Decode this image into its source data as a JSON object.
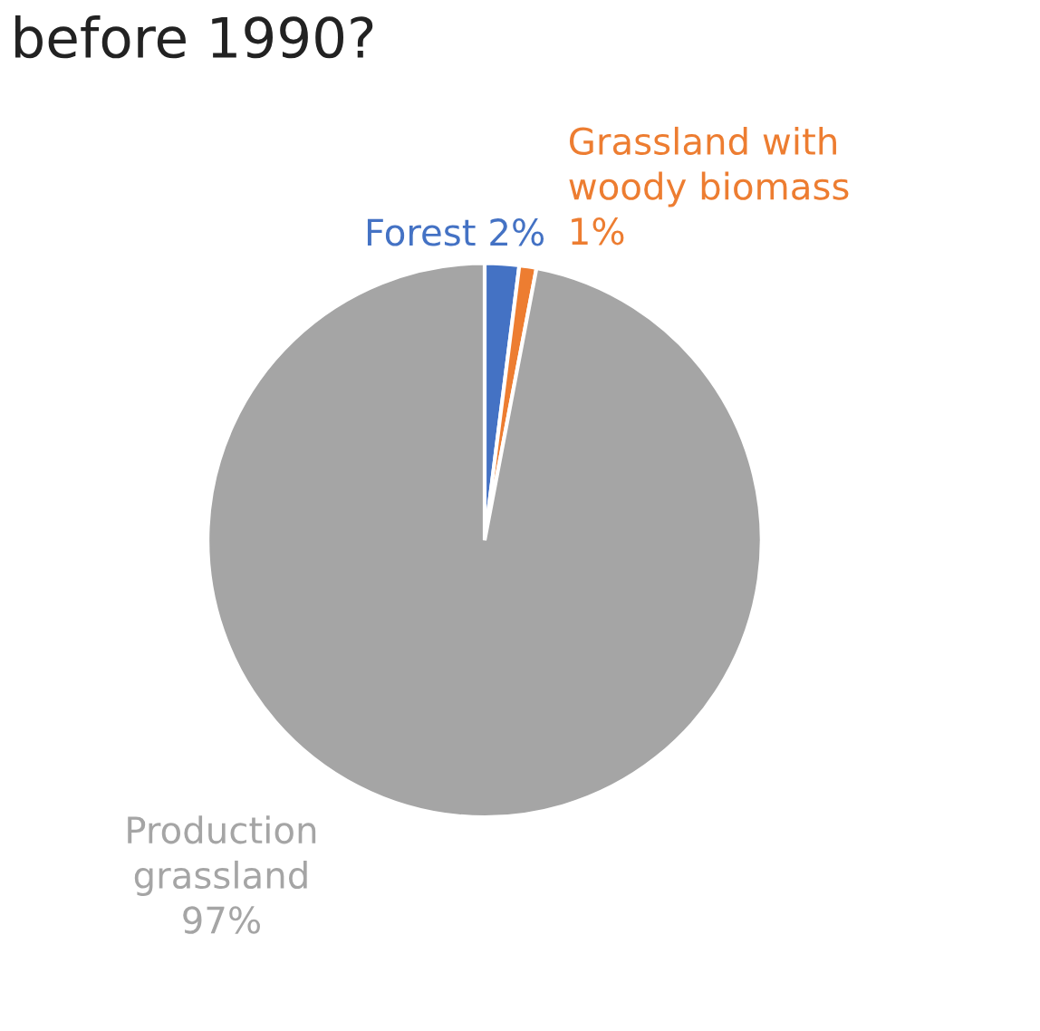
{
  "chart_data": {
    "type": "pie",
    "title": "before 1990?",
    "categories": [
      "Forest",
      "Grassland with\nwoody biomass",
      "Production\ngrassland"
    ],
    "values": [
      2,
      1,
      97
    ],
    "value_labels": [
      "2%",
      "1%",
      "97%"
    ],
    "colors": [
      "#4472c4",
      "#ed7d31",
      "#a5a5a5"
    ],
    "legend": false
  }
}
